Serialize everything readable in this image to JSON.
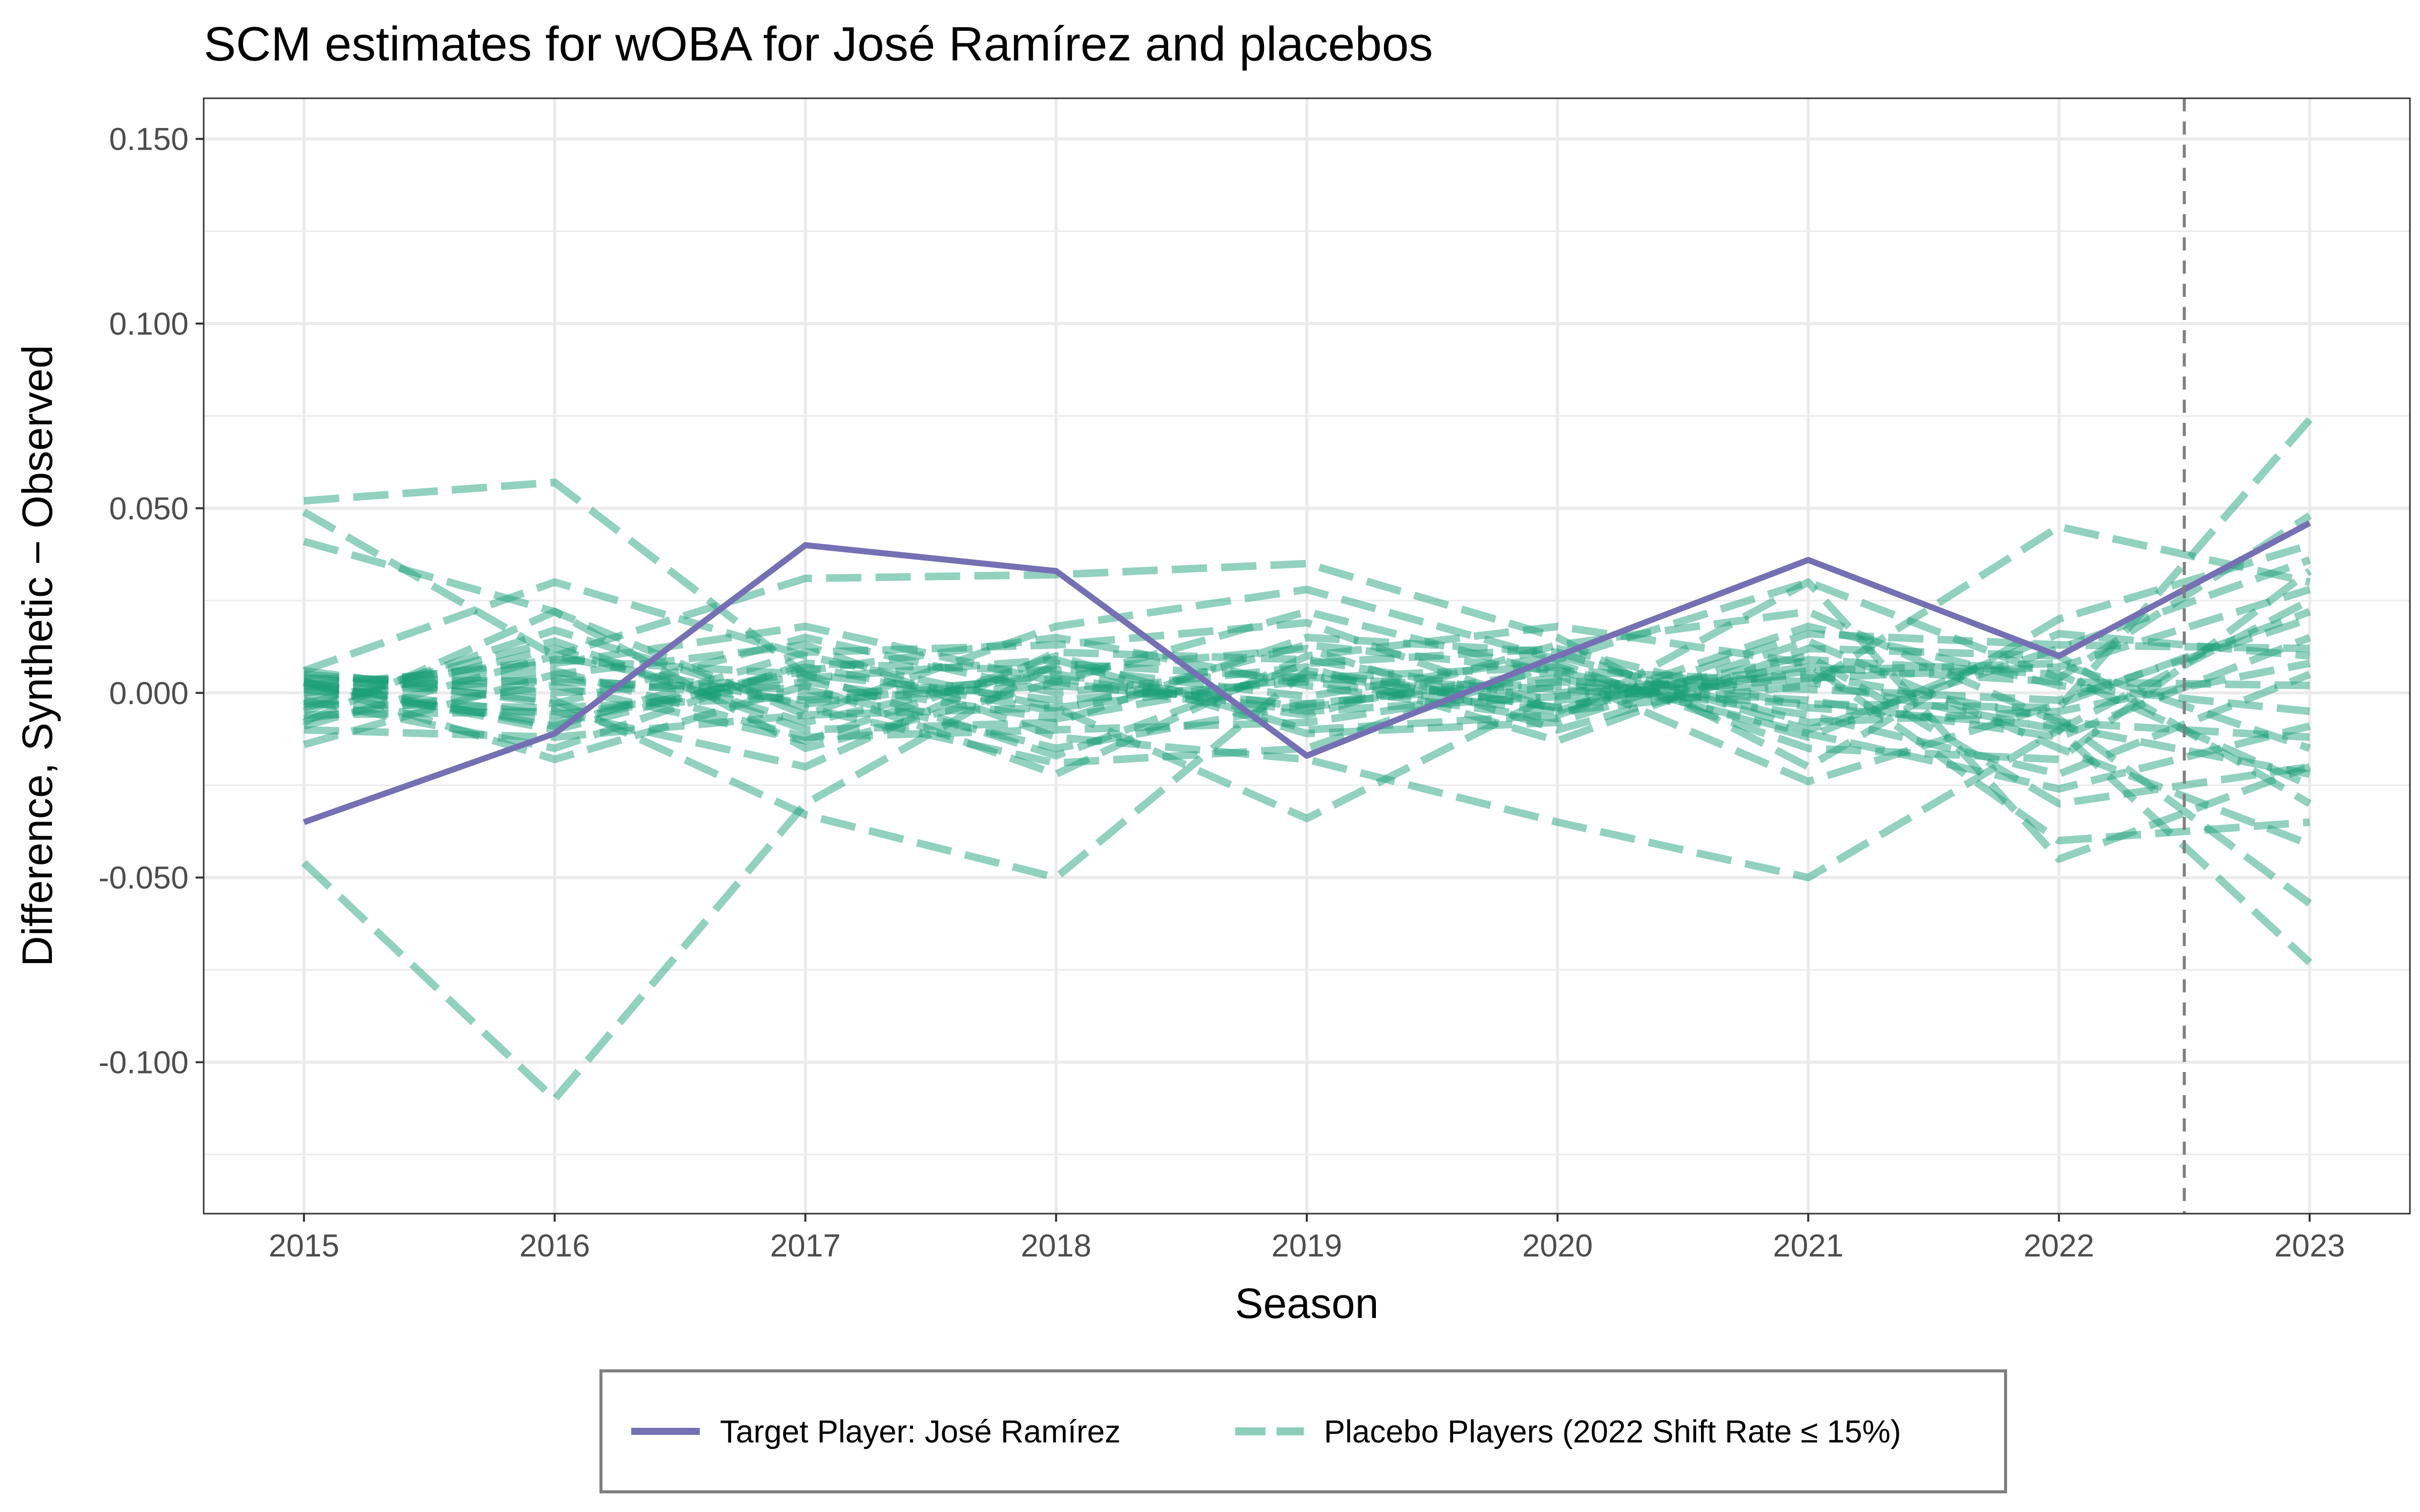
{
  "chart_data": {
    "type": "line",
    "title": "SCM estimates for wOBA for José Ramírez and placebos",
    "xlabel": "Season",
    "ylabel": "Difference, Synthetic − Observed",
    "xlim": [
      2014.6,
      2023.4
    ],
    "ylim": [
      -0.141,
      0.161
    ],
    "x_ticks": [
      2015,
      2016,
      2017,
      2018,
      2019,
      2020,
      2021,
      2022,
      2023
    ],
    "y_ticks": [
      0.15,
      0.1,
      0.05,
      0.0,
      -0.05,
      -0.1
    ],
    "y_tick_labels": [
      "0.150",
      "0.100",
      "0.050",
      "0.000",
      "-0.050",
      "-0.100"
    ],
    "reference_line": {
      "x": 2022.5,
      "style": "dashed",
      "color": "#7f7f7f"
    },
    "grid": true,
    "legend_position": "bottom",
    "colors": {
      "target": "#7570b3",
      "placebo": "#1b9e77"
    },
    "x": [
      2015,
      2016,
      2017,
      2018,
      2019,
      2020,
      2021,
      2022,
      2023
    ],
    "series": [
      {
        "name": "Target Player: José Ramírez",
        "role": "target",
        "values": [
          -0.035,
          -0.011,
          0.04,
          0.033,
          -0.017,
          0.01,
          0.036,
          0.01,
          0.046
        ]
      },
      {
        "name": "Placebo Players (2022 Shift Rate ≤ 15%)",
        "role": "placebo",
        "values": [
          0.052,
          0.057,
          0.005,
          -0.002,
          0.003,
          -0.005,
          0.002,
          0.045,
          0.03
        ]
      },
      {
        "role": "placebo",
        "values": [
          -0.046,
          -0.11,
          -0.03,
          0.008,
          0.004,
          0.001,
          -0.003,
          -0.004,
          0.074
        ]
      },
      {
        "role": "placebo",
        "values": [
          0.049,
          0.01,
          -0.003,
          0.005,
          -0.004,
          0.006,
          0.003,
          -0.01,
          -0.073
        ]
      },
      {
        "role": "placebo",
        "values": [
          0.041,
          0.022,
          -0.006,
          0.018,
          0.028,
          0.009,
          0.03,
          0.004,
          0.048
        ]
      },
      {
        "role": "placebo",
        "values": [
          0.006,
          0.03,
          0.01,
          -0.004,
          -0.034,
          0.0,
          0.005,
          -0.007,
          -0.057
        ]
      },
      {
        "role": "placebo",
        "values": [
          -0.009,
          0.01,
          0.031,
          0.032,
          0.035,
          0.015,
          -0.02,
          0.02,
          0.04
        ]
      },
      {
        "role": "placebo",
        "values": [
          0.004,
          -0.002,
          -0.033,
          -0.05,
          0.006,
          -0.004,
          0.01,
          -0.03,
          -0.02
        ]
      },
      {
        "role": "placebo",
        "values": [
          -0.014,
          0.005,
          0.013,
          -0.012,
          -0.018,
          -0.035,
          -0.05,
          -0.01,
          0.025
        ]
      },
      {
        "role": "placebo",
        "values": [
          0.003,
          -0.018,
          0.002,
          -0.022,
          0.01,
          0.018,
          0.008,
          -0.04,
          -0.035
        ]
      },
      {
        "role": "placebo",
        "values": [
          -0.008,
          0.022,
          -0.015,
          0.003,
          0.022,
          0.005,
          -0.024,
          -0.003,
          0.022
        ]
      },
      {
        "role": "placebo",
        "values": [
          0.001,
          -0.008,
          0.006,
          0.015,
          0.002,
          -0.007,
          0.03,
          -0.045,
          -0.02
        ]
      },
      {
        "role": "placebo",
        "values": [
          -0.003,
          0.014,
          -0.01,
          -0.008,
          0.015,
          0.011,
          -0.01,
          0.012,
          0.036
        ]
      },
      {
        "role": "placebo",
        "values": [
          0.005,
          0.0,
          0.004,
          0.009,
          -0.011,
          -0.008,
          0.014,
          -0.015,
          -0.041
        ]
      },
      {
        "role": "placebo",
        "values": [
          -0.01,
          -0.012,
          -0.006,
          -0.004,
          0.004,
          0.007,
          -0.012,
          0.016,
          0.01
        ]
      },
      {
        "role": "placebo",
        "values": [
          0.002,
          0.008,
          0.018,
          0.003,
          -0.006,
          0.013,
          0.022,
          -0.008,
          -0.012
        ]
      },
      {
        "role": "placebo",
        "values": [
          -0.006,
          -0.005,
          -0.02,
          0.011,
          0.009,
          -0.002,
          0.004,
          0.007,
          0.028
        ]
      },
      {
        "role": "placebo",
        "values": [
          0.004,
          0.003,
          0.001,
          -0.015,
          -0.003,
          0.004,
          -0.006,
          -0.022,
          0.005
        ]
      },
      {
        "role": "placebo",
        "values": [
          -0.002,
          -0.015,
          0.008,
          0.006,
          0.012,
          -0.01,
          0.009,
          0.005,
          -0.025
        ]
      },
      {
        "role": "placebo",
        "values": [
          0.0,
          0.006,
          -0.012,
          -0.01,
          -0.008,
          0.002,
          -0.002,
          -0.012,
          0.015
        ]
      },
      {
        "role": "placebo",
        "values": [
          0.003,
          -0.009,
          0.011,
          0.013,
          0.019,
          -0.005,
          0.018,
          0.002,
          -0.005
        ]
      },
      {
        "role": "placebo",
        "values": [
          -0.005,
          0.017,
          -0.004,
          -0.019,
          -0.015,
          0.008,
          -0.015,
          -0.018,
          0.033
        ]
      },
      {
        "role": "placebo",
        "values": [
          0.006,
          -0.003,
          0.015,
          0.0,
          0.007,
          -0.013,
          0.012,
          0.01,
          -0.03
        ]
      },
      {
        "role": "placebo",
        "values": [
          -0.004,
          0.012,
          -0.008,
          0.007,
          -0.001,
          0.01,
          -0.008,
          -0.005,
          0.008
        ]
      },
      {
        "role": "placebo",
        "values": [
          0.002,
          -0.006,
          0.003,
          -0.007,
          0.005,
          -0.004,
          0.006,
          0.008,
          -0.015
        ]
      },
      {
        "role": "placebo",
        "values": [
          -0.001,
          0.004,
          -0.002,
          0.002,
          -0.003,
          0.003,
          0.001,
          -0.002,
          0.02
        ]
      },
      {
        "role": "placebo",
        "values": [
          0.003,
          -0.01,
          0.007,
          -0.005,
          0.013,
          0.006,
          -0.011,
          -0.026,
          -0.009
        ]
      },
      {
        "role": "placebo",
        "values": [
          -0.007,
          0.002,
          -0.013,
          0.01,
          -0.01,
          -0.006,
          0.016,
          0.013,
          0.012
        ]
      },
      {
        "role": "placebo",
        "values": [
          0.001,
          0.009,
          0.005,
          -0.017,
          0.008,
          0.012,
          -0.004,
          -0.009,
          -0.022
        ]
      },
      {
        "role": "placebo",
        "values": [
          -0.003,
          -0.004,
          -0.001,
          0.004,
          -0.005,
          -0.001,
          0.007,
          0.003,
          0.002
        ]
      }
    ]
  },
  "legend": {
    "items": [
      {
        "label": "Target Player: José Ramírez",
        "role": "target"
      },
      {
        "label": "Placebo Players (2022 Shift Rate ≤ 15%)",
        "role": "placebo"
      }
    ]
  }
}
